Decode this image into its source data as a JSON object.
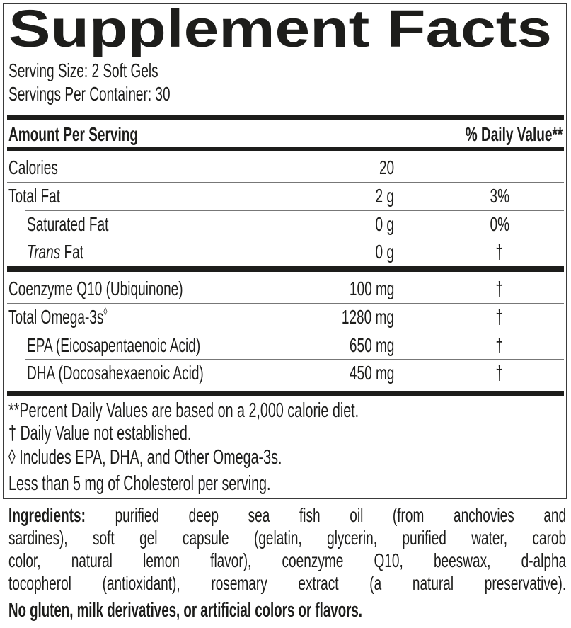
{
  "title": "Supplement Facts",
  "serving_size": "Serving Size: 2 Soft Gels",
  "servings_per_container": "Servings Per Container: 30",
  "header": {
    "amount_per_serving": "Amount Per Serving",
    "daily_value": "% Daily Value**"
  },
  "rows": [
    {
      "name": "Calories",
      "amount": "20",
      "dv": ""
    },
    {
      "name": "Total Fat",
      "amount": "2 g",
      "dv": "3%"
    },
    {
      "name": "Saturated Fat",
      "amount": "0 g",
      "dv": "0%"
    },
    {
      "name_italic": "Trans",
      "name": " Fat",
      "amount": "0 g",
      "dv": "†"
    },
    {
      "name": "Coenzyme Q10 (Ubiquinone)",
      "amount": "100 mg",
      "dv": "†"
    },
    {
      "name": "Total Omega-3s",
      "sup": "◊",
      "amount": "1280 mg",
      "dv": "†"
    },
    {
      "name": "EPA (Eicosapentaenoic Acid)",
      "amount": "650 mg",
      "dv": "†"
    },
    {
      "name": "DHA (Docosahexaenoic Acid)",
      "amount": "450 mg",
      "dv": "†"
    }
  ],
  "footnotes": [
    "**Percent Daily Values are based on a 2,000 calorie diet.",
    "† Daily Value not established.",
    "◊ Includes EPA, DHA, and Other Omega-3s.",
    "Less than 5 mg of Cholesterol per serving."
  ],
  "ingredients": {
    "label": "Ingredients:",
    "lines": [
      " purified deep sea fish oil (from anchovies and",
      "sardines), soft gel capsule (gelatin, glycerin, purified water, carob",
      "color, natural lemon flavor), coenzyme Q10, beeswax, d-alpha",
      "tocopherol (antioxidant), rosemary extract (a natural preservative)."
    ]
  },
  "allergen_statement": "No gluten, milk derivatives, or artificial colors or flavors."
}
